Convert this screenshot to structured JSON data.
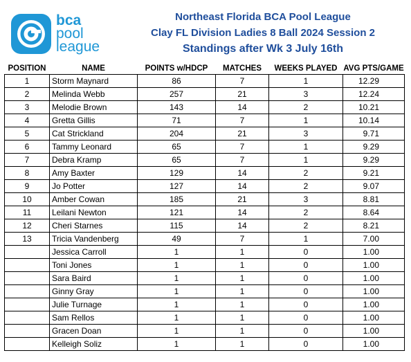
{
  "logo": {
    "line1": "bca",
    "line2": "pool",
    "line3": "league"
  },
  "header": {
    "line1": "Northeast Florida BCA Pool League",
    "line2": "Clay FL Division  Ladies 8 Ball 2024 Session 2",
    "line3": "Standings after Wk 3 July 16th"
  },
  "table": {
    "columns": [
      "POSITION",
      "NAME",
      "POINTS w/HDCP",
      "MATCHES",
      "WEEKS PLAYED",
      "AVG PTS/GAME"
    ],
    "rows": [
      {
        "position": "1",
        "name": "Storm Maynard",
        "points": "86",
        "matches": "7",
        "weeks": "1",
        "avg": "12.29"
      },
      {
        "position": "2",
        "name": "Melinda Webb",
        "points": "257",
        "matches": "21",
        "weeks": "3",
        "avg": "12.24"
      },
      {
        "position": "3",
        "name": "Melodie Brown",
        "points": "143",
        "matches": "14",
        "weeks": "2",
        "avg": "10.21"
      },
      {
        "position": "4",
        "name": "Gretta Gillis",
        "points": "71",
        "matches": "7",
        "weeks": "1",
        "avg": "10.14"
      },
      {
        "position": "5",
        "name": "Cat Strickland",
        "points": "204",
        "matches": "21",
        "weeks": "3",
        "avg": "9.71"
      },
      {
        "position": "6",
        "name": "Tammy Leonard",
        "points": "65",
        "matches": "7",
        "weeks": "1",
        "avg": "9.29"
      },
      {
        "position": "7",
        "name": "Debra Kramp",
        "points": "65",
        "matches": "7",
        "weeks": "1",
        "avg": "9.29"
      },
      {
        "position": "8",
        "name": "Amy Baxter",
        "points": "129",
        "matches": "14",
        "weeks": "2",
        "avg": "9.21"
      },
      {
        "position": "9",
        "name": "Jo Potter",
        "points": "127",
        "matches": "14",
        "weeks": "2",
        "avg": "9.07"
      },
      {
        "position": "10",
        "name": "Amber Cowan",
        "points": "185",
        "matches": "21",
        "weeks": "3",
        "avg": "8.81"
      },
      {
        "position": "11",
        "name": "Leilani Newton",
        "points": "121",
        "matches": "14",
        "weeks": "2",
        "avg": "8.64"
      },
      {
        "position": "12",
        "name": "Cheri Starnes",
        "points": "115",
        "matches": "14",
        "weeks": "2",
        "avg": "8.21"
      },
      {
        "position": "13",
        "name": "Tricia Vandenberg",
        "points": "49",
        "matches": "7",
        "weeks": "1",
        "avg": "7.00"
      },
      {
        "position": "",
        "name": "Jessica Carroll",
        "points": "1",
        "matches": "1",
        "weeks": "0",
        "avg": "1.00"
      },
      {
        "position": "",
        "name": "Toni Jones",
        "points": "1",
        "matches": "1",
        "weeks": "0",
        "avg": "1.00"
      },
      {
        "position": "",
        "name": "Sara Baird",
        "points": "1",
        "matches": "1",
        "weeks": "0",
        "avg": "1.00"
      },
      {
        "position": "",
        "name": "Ginny Gray",
        "points": "1",
        "matches": "1",
        "weeks": "0",
        "avg": "1.00"
      },
      {
        "position": "",
        "name": "Julie Turnage",
        "points": "1",
        "matches": "1",
        "weeks": "0",
        "avg": "1.00"
      },
      {
        "position": "",
        "name": "Sam Rellos",
        "points": "1",
        "matches": "1",
        "weeks": "0",
        "avg": "1.00"
      },
      {
        "position": "",
        "name": "Gracen Doan",
        "points": "1",
        "matches": "1",
        "weeks": "0",
        "avg": "1.00"
      },
      {
        "position": "",
        "name": "Kelleigh Soliz",
        "points": "1",
        "matches": "1",
        "weeks": "0",
        "avg": "1.00"
      }
    ]
  },
  "colors": {
    "brand_blue": "#1f97d6",
    "header_blue": "#1f4e9c"
  }
}
